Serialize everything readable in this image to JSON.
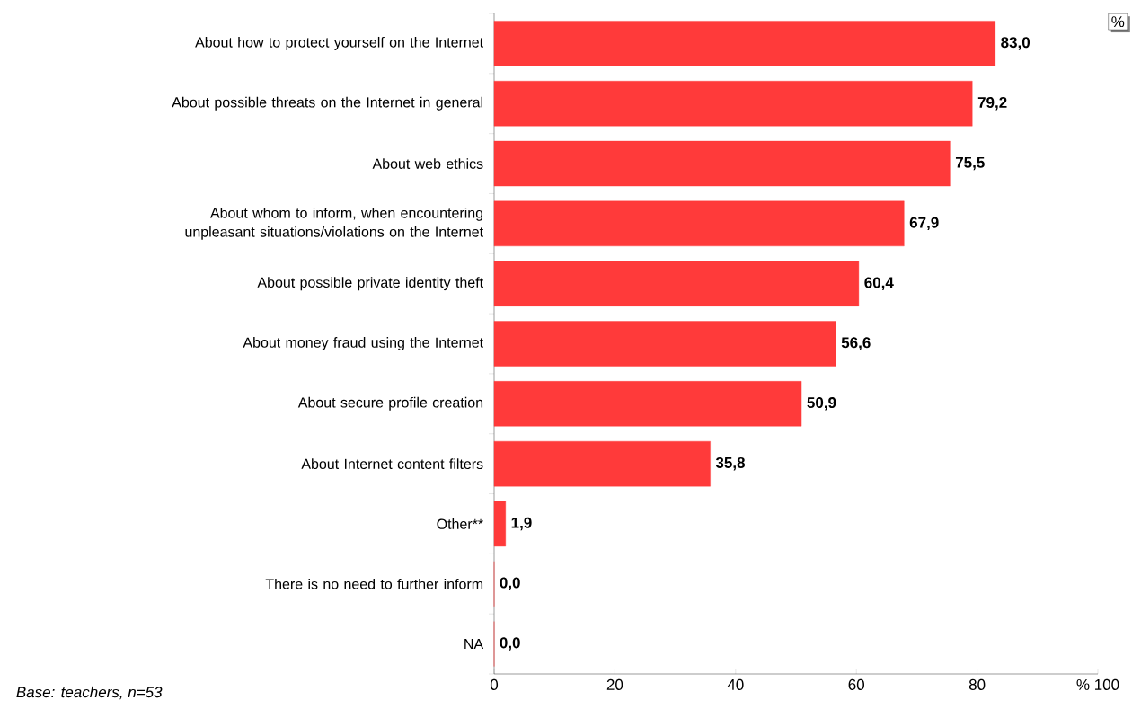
{
  "chart_data": {
    "type": "bar",
    "orientation": "horizontal",
    "categories": [
      "About how to protect yourself on the Internet",
      "About possible threats on the Internet in general",
      "About web ethics",
      "About whom to inform, when encountering unpleasant situations/violations on the Internet",
      "About possible private identity theft",
      "About money fraud using the Internet",
      "About secure profile creation",
      "About Internet content filters",
      "Other**",
      "There is no need to further inform",
      "NA"
    ],
    "values": [
      83.0,
      79.2,
      75.5,
      67.9,
      60.4,
      56.6,
      50.9,
      35.8,
      1.9,
      0.0,
      0.0
    ],
    "value_labels": [
      "83,0",
      "79,2",
      "75,5",
      "67,9",
      "60,4",
      "56,6",
      "50,9",
      "35,8",
      "1,9",
      "0,0",
      "0,0"
    ],
    "color": "#ff3a3a",
    "xlim": [
      0,
      100
    ],
    "xticks": [
      0,
      20,
      40,
      60,
      80,
      {
        "value": 100,
        "label": "% 100"
      }
    ],
    "grid": false,
    "annotations": [
      "Base: teachers, n=53",
      "%"
    ]
  }
}
